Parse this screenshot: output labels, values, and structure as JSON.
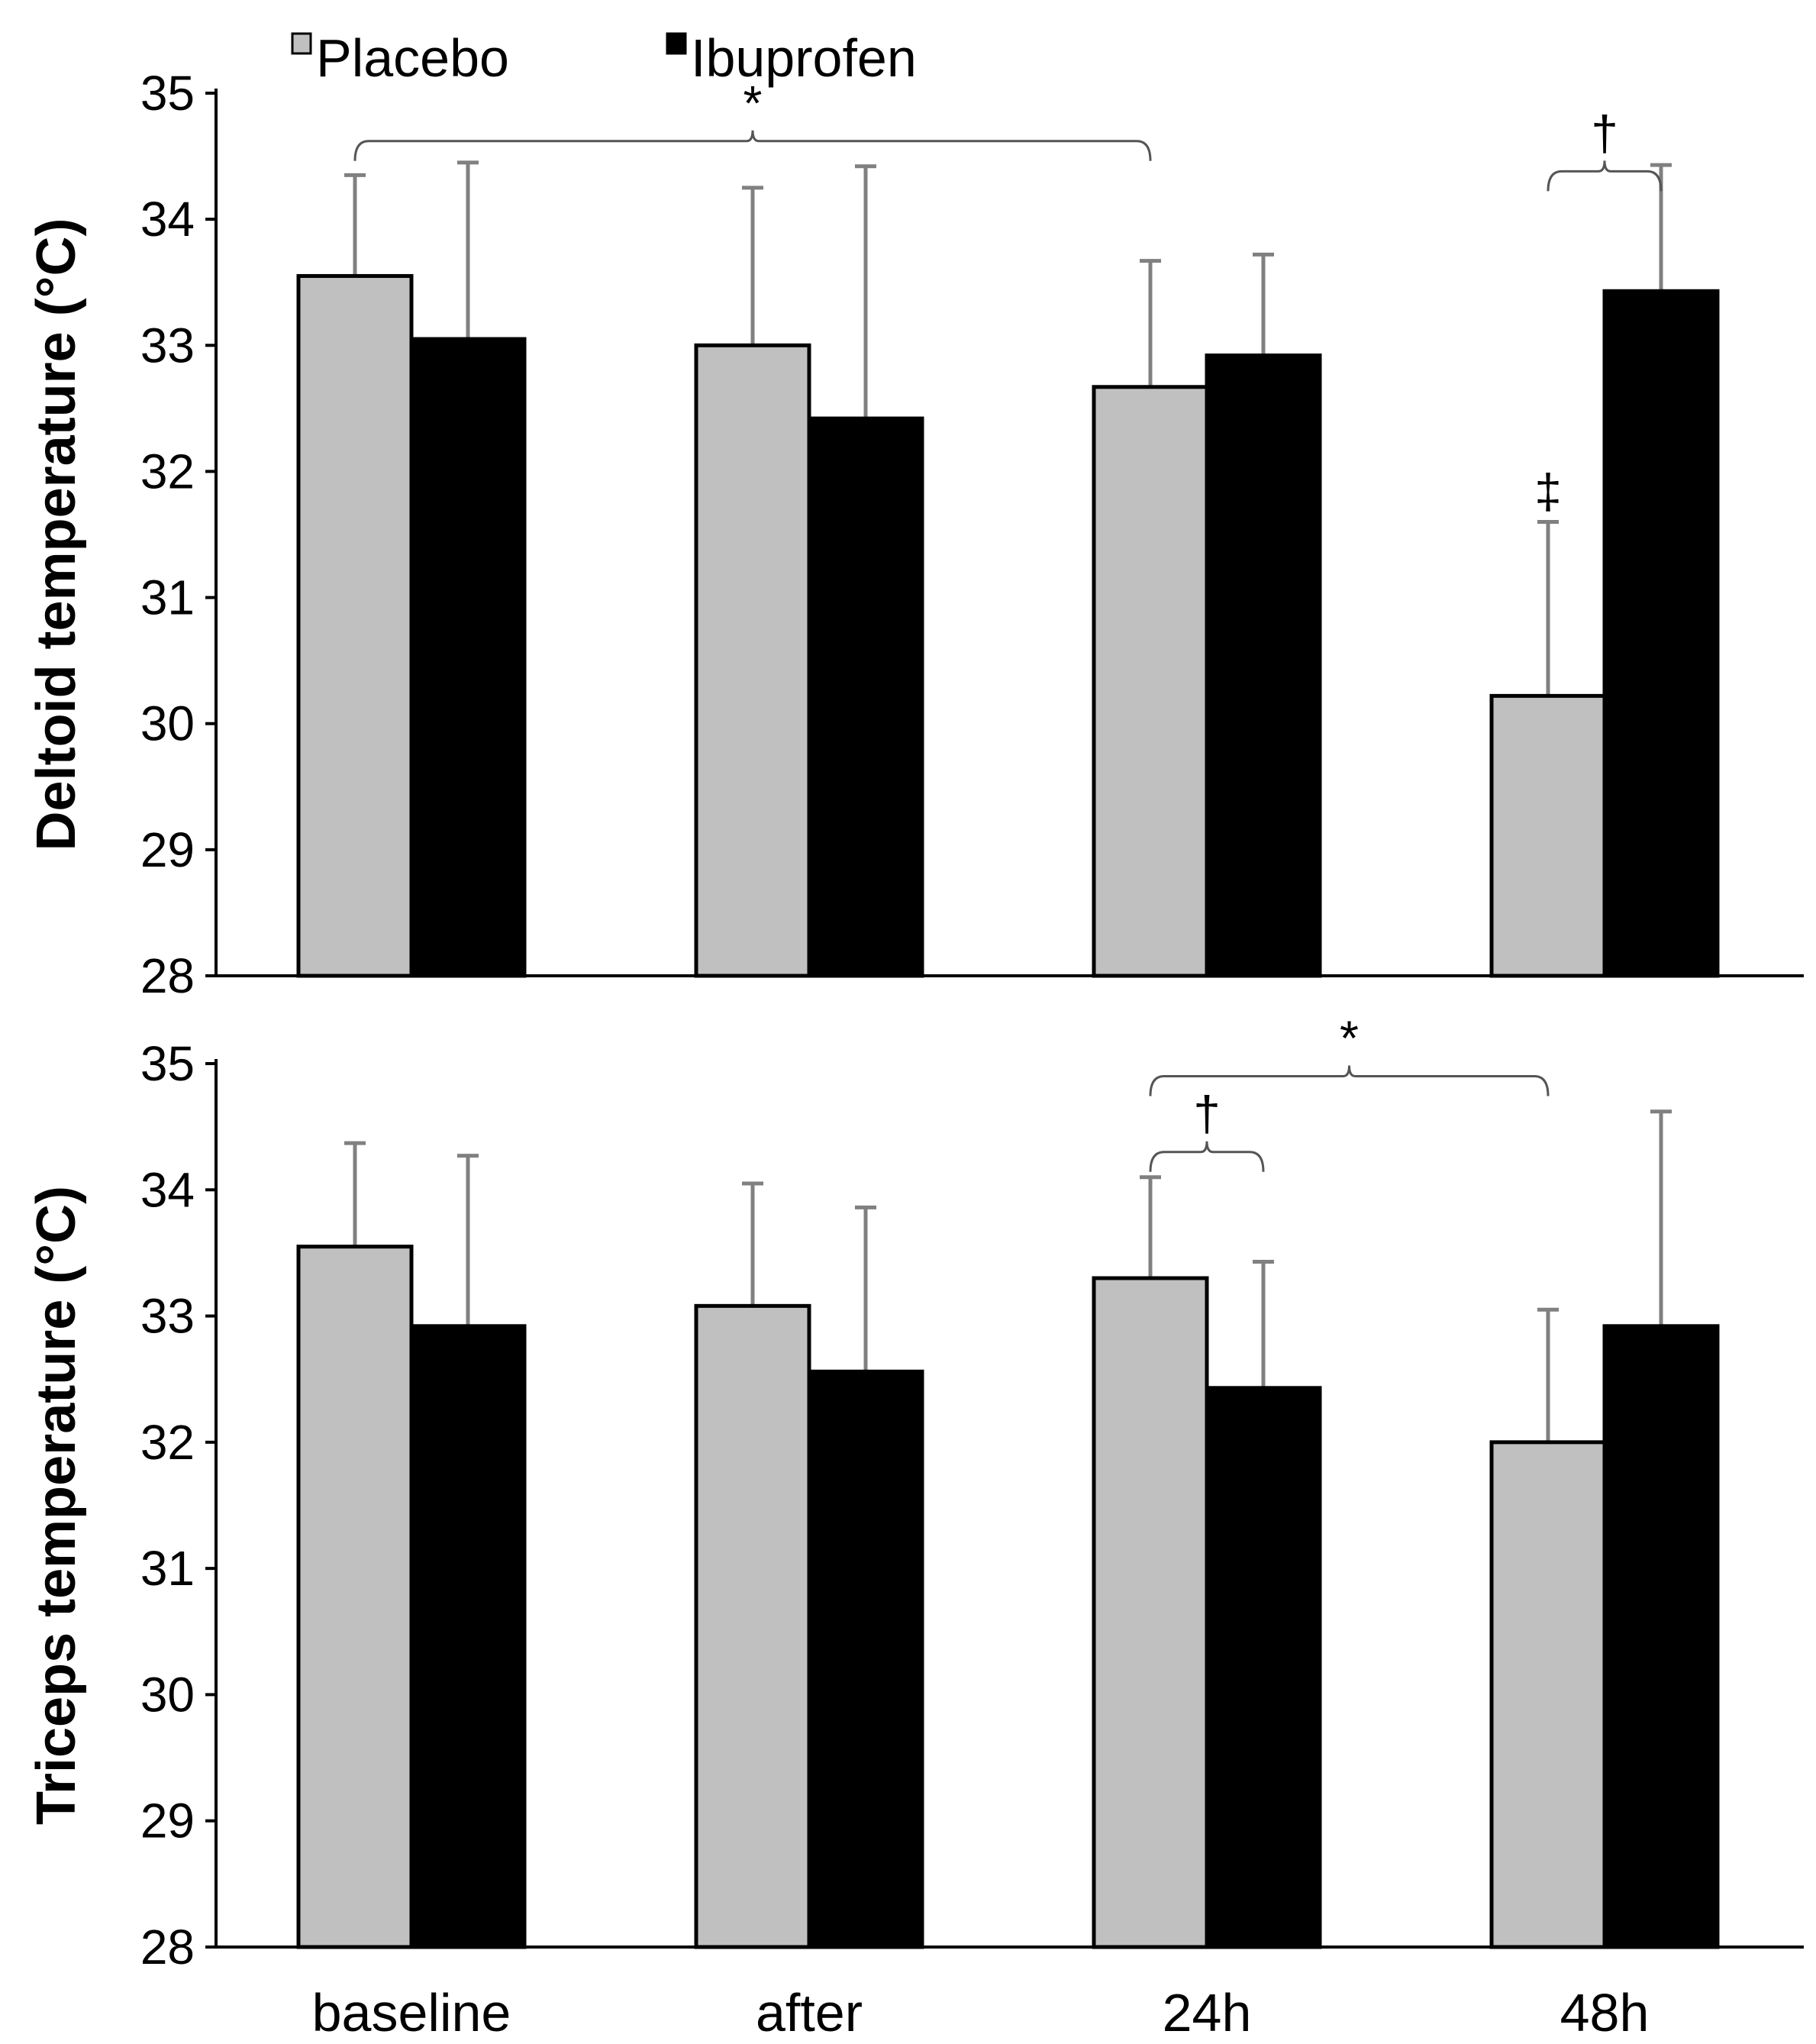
{
  "chart_data": [
    {
      "type": "bar",
      "panel": "top",
      "categories": [
        "baseline",
        "after",
        "24h",
        "48h"
      ],
      "series": [
        {
          "name": "Placebo",
          "values": [
            33.55,
            33.0,
            32.67,
            30.22
          ],
          "errors": [
            0.8,
            1.25,
            1.0,
            1.38
          ]
        },
        {
          "name": "Ibuprofen",
          "values": [
            33.05,
            32.42,
            32.92,
            33.43
          ],
          "errors": [
            1.4,
            2.0,
            0.8,
            1.0
          ]
        }
      ],
      "ylabel": "Deltoid temperature  (°C)",
      "ylim": [
        28,
        35
      ],
      "yticks": [
        "28",
        "29",
        "30",
        "31",
        "32",
        "33",
        "34",
        "35"
      ],
      "annotations": [
        {
          "symbol": "*",
          "type": "bracket",
          "from_category": "baseline",
          "to_category": "24h",
          "y": 34.62
        },
        {
          "symbol": "†",
          "type": "bracket",
          "from_category": "48h",
          "to_category": "48h",
          "y": 34.38
        },
        {
          "symbol": "‡",
          "type": "marker",
          "category": "48h",
          "series": "Placebo",
          "y": 31.6
        }
      ]
    },
    {
      "type": "bar",
      "panel": "bottom",
      "categories": [
        "baseline",
        "after",
        "24h",
        "48h"
      ],
      "series": [
        {
          "name": "Placebo",
          "values": [
            33.55,
            33.08,
            33.3,
            32.0
          ],
          "errors": [
            0.82,
            0.97,
            0.8,
            1.05
          ]
        },
        {
          "name": "Ibuprofen",
          "values": [
            32.92,
            32.56,
            32.43,
            32.92
          ],
          "errors": [
            1.35,
            1.3,
            1.0,
            1.7
          ]
        }
      ],
      "ylabel": "Triceps temperature  (°C)",
      "ylim": [
        28,
        35
      ],
      "yticks": [
        "28",
        "29",
        "30",
        "31",
        "32",
        "33",
        "34",
        "35"
      ],
      "annotations": [
        {
          "symbol": "*",
          "type": "bracket",
          "from_category": "24h",
          "to_category": "48h",
          "y": 34.9
        },
        {
          "symbol": "†",
          "type": "bracket",
          "from_category": "24h",
          "to_category": "24h",
          "y": 34.3
        }
      ]
    }
  ],
  "legend": [
    {
      "label": "Placebo",
      "color": "#c0c0c0"
    },
    {
      "label": "Ibuprofen",
      "color": "#000000"
    }
  ],
  "colors": {
    "placebo": "#c0c0c0",
    "ibuprofen": "#000000",
    "axis": "#000000",
    "error_bar": "#808080"
  }
}
